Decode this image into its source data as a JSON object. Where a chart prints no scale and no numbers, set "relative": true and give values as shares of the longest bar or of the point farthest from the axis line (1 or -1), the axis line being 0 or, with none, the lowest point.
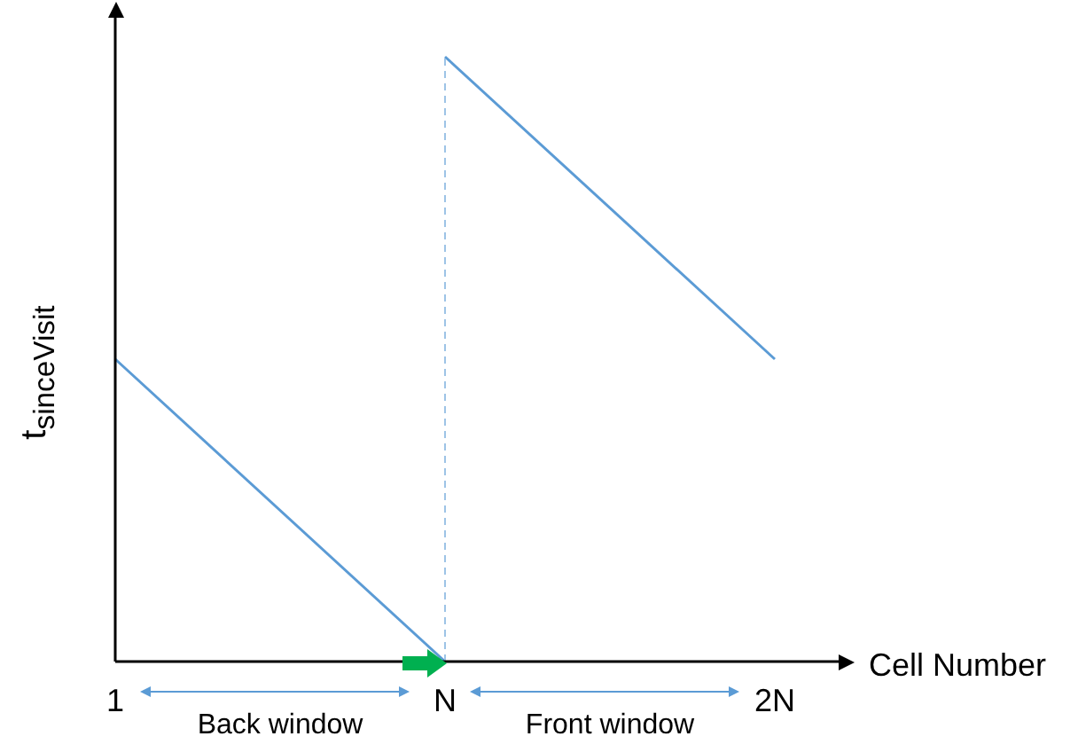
{
  "chart_data": {
    "type": "line",
    "relative": true,
    "xlabel": "Cell Number",
    "ylabel": "t$_{sinceVisit}$",
    "categories": [
      "1",
      "N",
      "2N"
    ],
    "series": [
      {
        "color": "#5b9bd5",
        "values": [
          0.5,
          0,
          null
        ]
      },
      {
        "color": "#5b9bd5",
        "values": [
          null,
          1,
          0.5
        ]
      }
    ],
    "ref_lines": [
      {
        "axis": "x",
        "value": "N",
        "color": "#9dc3e6",
        "line_style": "dashed"
      }
    ],
    "annotations": [
      "Back window",
      "Front window"
    ],
    "marker": "none",
    "grid": false,
    "legend": false
  }
}
